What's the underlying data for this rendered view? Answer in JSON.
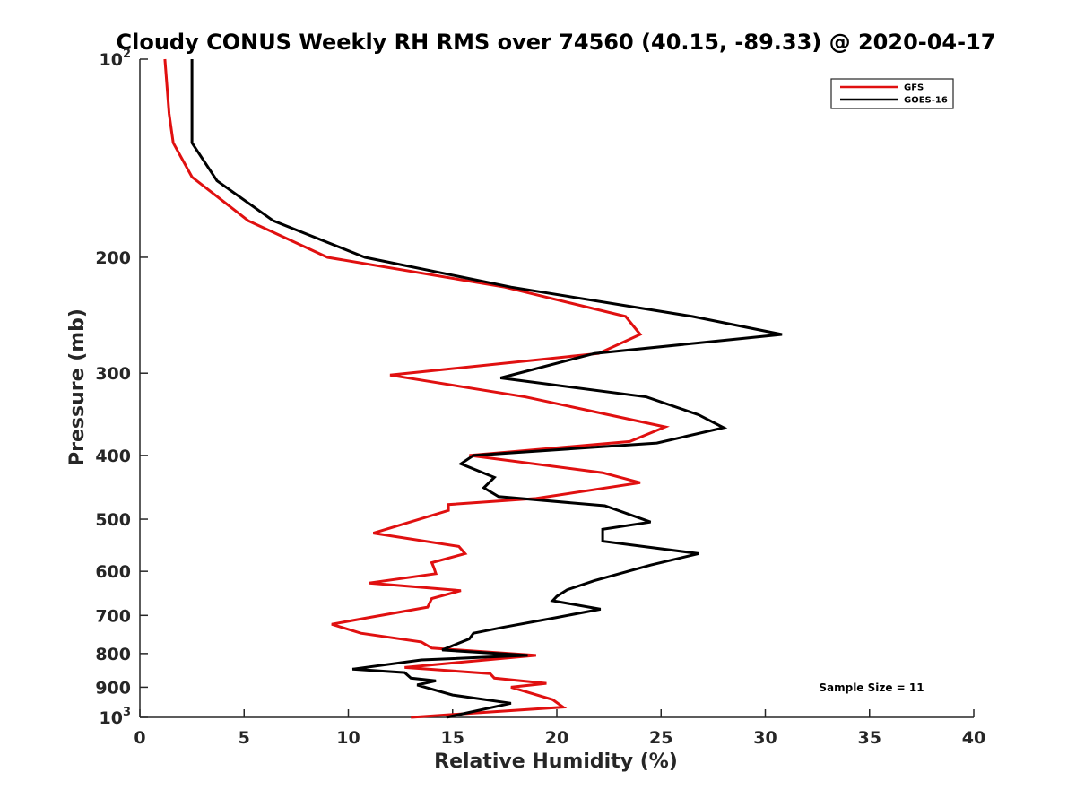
{
  "chart_data": {
    "type": "line",
    "title": "Cloudy CONUS Weekly RH RMS over 74560 (40.15, -89.33) @ 2020-04-17",
    "xlabel": "Relative Humidity (%)",
    "ylabel": "Pressure (mb)",
    "xlim": [
      0,
      40
    ],
    "ylim": [
      100,
      1000
    ],
    "y_scale": "log",
    "y_reversed": true,
    "x_ticks": [
      "0",
      "5",
      "10",
      "15",
      "20",
      "25",
      "30",
      "35",
      "40"
    ],
    "y_ticks": [
      {
        "value": 100,
        "base": "10",
        "exp": "2"
      },
      {
        "value": 200,
        "label": "200"
      },
      {
        "value": 300,
        "label": "300"
      },
      {
        "value": 400,
        "label": "400"
      },
      {
        "value": 500,
        "label": "500"
      },
      {
        "value": 600,
        "label": "600"
      },
      {
        "value": 700,
        "label": "700"
      },
      {
        "value": 800,
        "label": "800"
      },
      {
        "value": 900,
        "label": "900"
      },
      {
        "value": 1000,
        "base": "10",
        "exp": "3"
      }
    ],
    "grid": false,
    "legend_position": "top-right",
    "annotation": "Sample Size = 11",
    "series": [
      {
        "name": "GFS",
        "color": "#e01010",
        "points": [
          [
            1.2,
            100
          ],
          [
            1.4,
            121
          ],
          [
            1.6,
            134
          ],
          [
            2.5,
            151
          ],
          [
            5.2,
            176
          ],
          [
            9.0,
            200
          ],
          [
            17.5,
            222
          ],
          [
            23.3,
            246
          ],
          [
            24.0,
            262
          ],
          [
            22.0,
            280
          ],
          [
            12.0,
            302
          ],
          [
            18.5,
            326
          ],
          [
            25.2,
            362
          ],
          [
            23.5,
            381
          ],
          [
            15.8,
            400
          ],
          [
            22.2,
            425
          ],
          [
            24.0,
            440
          ],
          [
            19.0,
            465
          ],
          [
            14.8,
            475
          ],
          [
            14.8,
            485
          ],
          [
            11.2,
            525
          ],
          [
            15.3,
            550
          ],
          [
            15.6,
            564
          ],
          [
            14.0,
            582
          ],
          [
            14.1,
            592
          ],
          [
            14.2,
            605
          ],
          [
            11.0,
            625
          ],
          [
            15.4,
            642
          ],
          [
            14.0,
            660
          ],
          [
            13.8,
            680
          ],
          [
            11.0,
            705
          ],
          [
            9.2,
            722
          ],
          [
            10.6,
            745
          ],
          [
            13.5,
            768
          ],
          [
            14.0,
            785
          ],
          [
            19.0,
            805
          ],
          [
            15.3,
            825
          ],
          [
            12.7,
            840
          ],
          [
            16.8,
            858
          ],
          [
            17.0,
            872
          ],
          [
            19.5,
            888
          ],
          [
            17.8,
            900
          ],
          [
            19.8,
            940
          ],
          [
            20.3,
            965
          ],
          [
            16.0,
            985
          ],
          [
            13.0,
            1000
          ]
        ]
      },
      {
        "name": "GOES-16",
        "color": "#000000",
        "points": [
          [
            2.5,
            100
          ],
          [
            2.5,
            121
          ],
          [
            2.5,
            134
          ],
          [
            3.7,
            153
          ],
          [
            6.4,
            176
          ],
          [
            10.8,
            200
          ],
          [
            17.8,
            222
          ],
          [
            26.5,
            246
          ],
          [
            30.8,
            262
          ],
          [
            21.8,
            280
          ],
          [
            17.3,
            305
          ],
          [
            24.3,
            326
          ],
          [
            26.8,
            347
          ],
          [
            28.0,
            363
          ],
          [
            24.8,
            383
          ],
          [
            16.0,
            400
          ],
          [
            15.4,
            412
          ],
          [
            17.0,
            432
          ],
          [
            16.5,
            448
          ],
          [
            17.2,
            462
          ],
          [
            22.3,
            477
          ],
          [
            24.5,
            505
          ],
          [
            22.2,
            518
          ],
          [
            22.2,
            540
          ],
          [
            26.8,
            564
          ],
          [
            24.5,
            587
          ],
          [
            23.0,
            605
          ],
          [
            21.8,
            620
          ],
          [
            20.5,
            640
          ],
          [
            20.0,
            655
          ],
          [
            19.8,
            665
          ],
          [
            22.1,
            685
          ],
          [
            20.0,
            705
          ],
          [
            17.4,
            730
          ],
          [
            16.0,
            745
          ],
          [
            15.8,
            760
          ],
          [
            14.5,
            790
          ],
          [
            18.6,
            805
          ],
          [
            13.5,
            818
          ],
          [
            10.2,
            845
          ],
          [
            12.7,
            855
          ],
          [
            13.0,
            872
          ],
          [
            14.2,
            880
          ],
          [
            13.3,
            893
          ],
          [
            15.0,
            925
          ],
          [
            17.8,
            952
          ],
          [
            14.7,
            1000
          ]
        ]
      }
    ]
  }
}
